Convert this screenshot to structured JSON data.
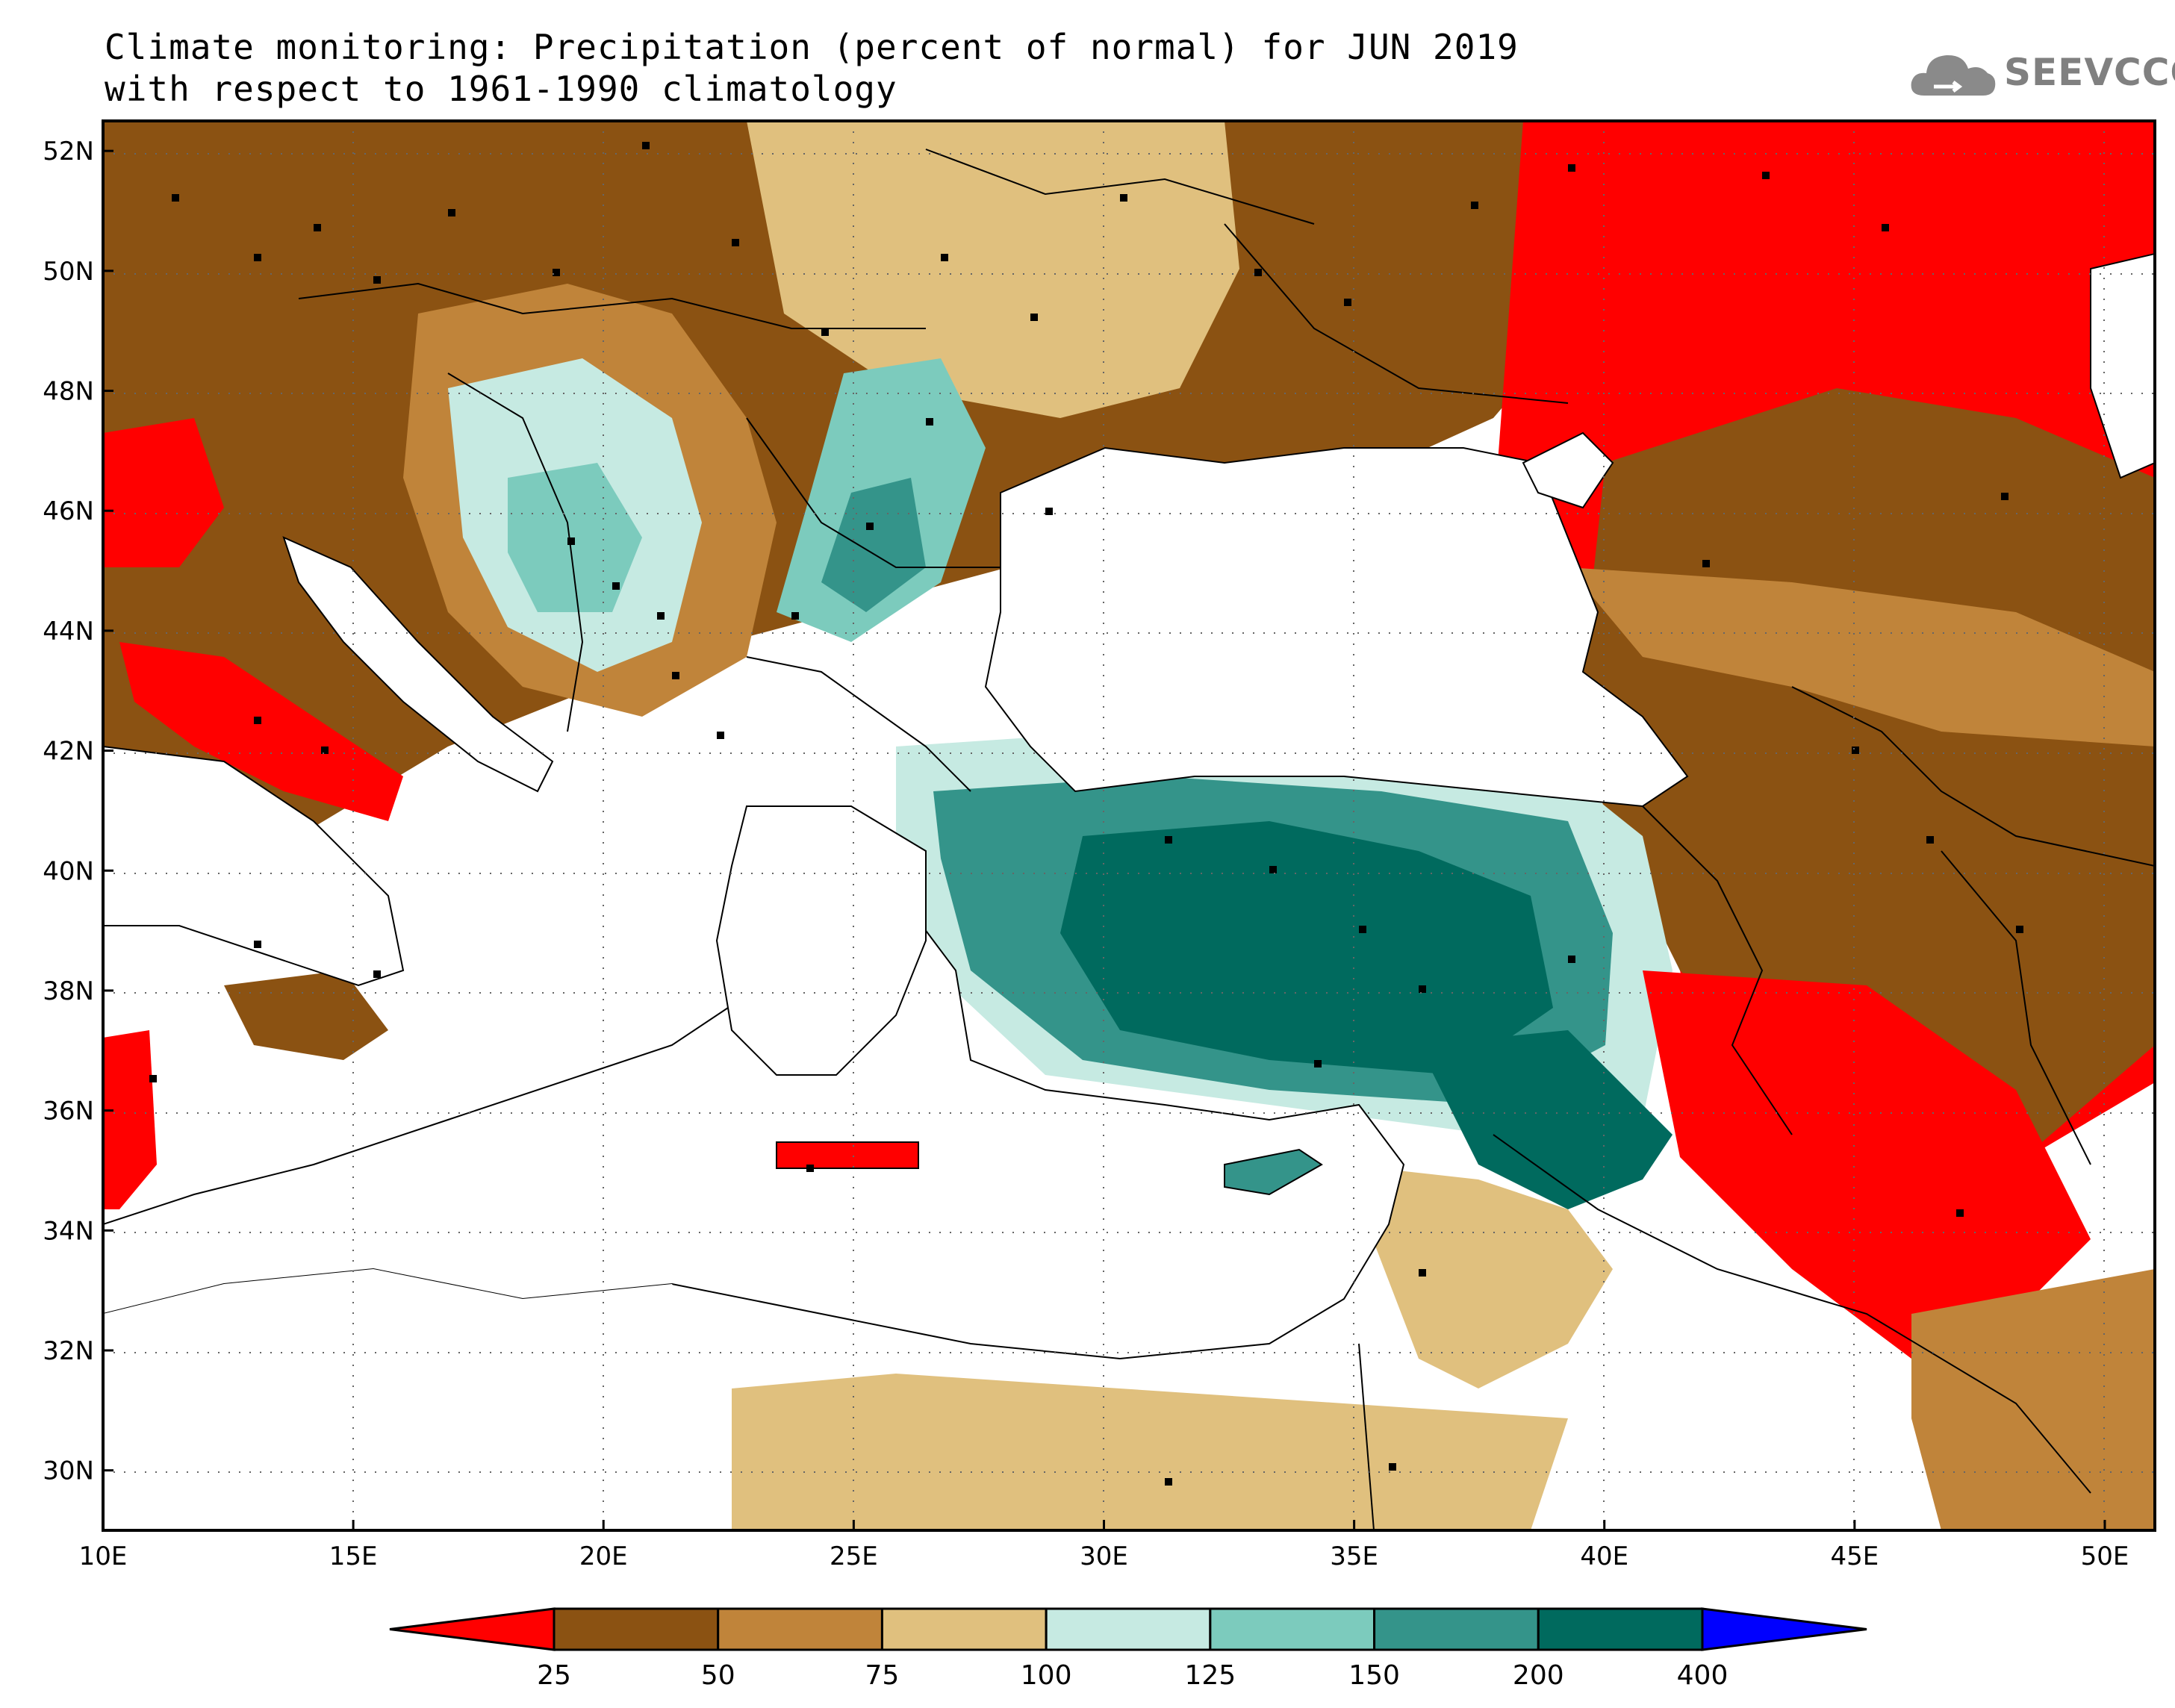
{
  "title": {
    "line1": "Climate monitoring: Precipitation (percent of normal) for JUN 2019",
    "line2": "with respect to 1961-1990 climatology"
  },
  "logo": {
    "text": "SEEVCCC",
    "icon": "cloud-icon"
  },
  "map": {
    "lon_range": [
      10,
      51
    ],
    "lat_range": [
      29,
      52.5
    ],
    "lon_ticks": [
      "10E",
      "15E",
      "20E",
      "25E",
      "30E",
      "35E",
      "40E",
      "45E",
      "50E"
    ],
    "lat_ticks": [
      "52N",
      "50N",
      "48N",
      "46N",
      "44N",
      "42N",
      "40N",
      "38N",
      "36N",
      "34N",
      "32N",
      "30N"
    ],
    "grid": true
  },
  "colorbar": {
    "labels": [
      "25",
      "50",
      "75",
      "100",
      "125",
      "150",
      "200",
      "400"
    ],
    "colors": [
      "#ff0000",
      "#8b5212",
      "#c0843a",
      "#e0c07e",
      "#c6eae2",
      "#7ccbbd",
      "#34948a",
      "#006a5e",
      "#0000ff"
    ]
  }
}
